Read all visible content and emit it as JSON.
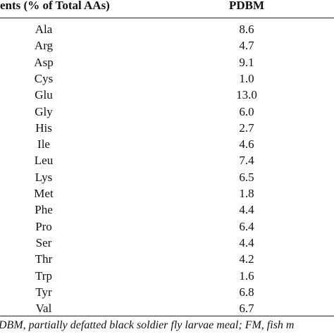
{
  "table": {
    "header": [
      "ents (% of Total AAs)",
      "PDBM"
    ],
    "rows": [
      [
        "Ala",
        "8.6"
      ],
      [
        "Arg",
        "4.7"
      ],
      [
        "Asp",
        "9.1"
      ],
      [
        "Cys",
        "1.0"
      ],
      [
        "Glu",
        "13.0"
      ],
      [
        "Gly",
        "6.0"
      ],
      [
        "His",
        "2.7"
      ],
      [
        "Ile",
        "4.6"
      ],
      [
        "Leu",
        "7.4"
      ],
      [
        "Lys",
        "6.5"
      ],
      [
        "Met",
        "1.8"
      ],
      [
        "Phe",
        "4.4"
      ],
      [
        "Pro",
        "6.4"
      ],
      [
        "Ser",
        "4.4"
      ],
      [
        "Thr",
        "4.2"
      ],
      [
        "Trp",
        "1.6"
      ],
      [
        "Tyr",
        "6.8"
      ],
      [
        "Val",
        "6.7"
      ]
    ]
  },
  "footnote": "DBM, partially defatted black soldier fly larvae meal; FM, fish m"
}
